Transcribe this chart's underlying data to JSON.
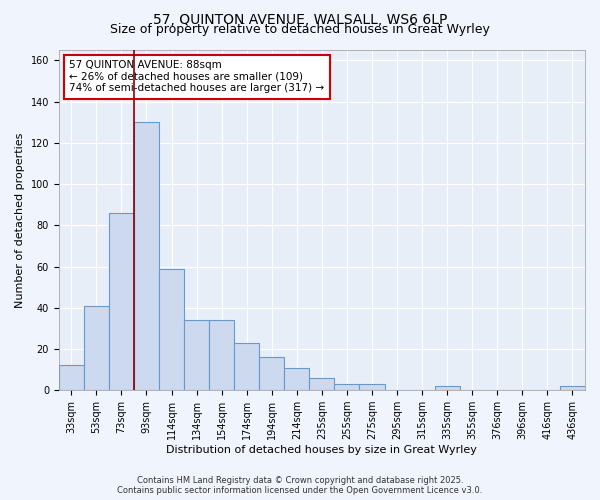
{
  "title": "57, QUINTON AVENUE, WALSALL, WS6 6LP",
  "subtitle": "Size of property relative to detached houses in Great Wyrley",
  "xlabel": "Distribution of detached houses by size in Great Wyrley",
  "ylabel": "Number of detached properties",
  "categories": [
    "33sqm",
    "53sqm",
    "73sqm",
    "93sqm",
    "114sqm",
    "134sqm",
    "154sqm",
    "174sqm",
    "194sqm",
    "214sqm",
    "235sqm",
    "255sqm",
    "275sqm",
    "295sqm",
    "315sqm",
    "335sqm",
    "355sqm",
    "376sqm",
    "396sqm",
    "416sqm",
    "436sqm"
  ],
  "values": [
    12,
    41,
    86,
    130,
    59,
    34,
    34,
    23,
    16,
    11,
    6,
    3,
    3,
    0,
    0,
    2,
    0,
    0,
    0,
    0,
    2
  ],
  "bar_color": "#ccd9ee",
  "bar_edge_color": "#6699cc",
  "vline_index": 3,
  "vline_color": "#880000",
  "annotation_text": "57 QUINTON AVENUE: 88sqm\n← 26% of detached houses are smaller (109)\n74% of semi-detached houses are larger (317) →",
  "annotation_box_facecolor": "#ffffff",
  "annotation_box_edgecolor": "#cc0000",
  "ylim": [
    0,
    165
  ],
  "yticks": [
    0,
    20,
    40,
    60,
    80,
    100,
    120,
    140,
    160
  ],
  "plot_bg_color": "#e8eef8",
  "fig_bg_color": "#f0f4fc",
  "grid_color": "#ffffff",
  "footer": "Contains HM Land Registry data © Crown copyright and database right 2025.\nContains public sector information licensed under the Open Government Licence v3.0.",
  "title_fontsize": 10,
  "subtitle_fontsize": 9,
  "ylabel_fontsize": 8,
  "xlabel_fontsize": 8,
  "tick_fontsize": 7,
  "annotation_fontsize": 7.5,
  "footer_fontsize": 6
}
